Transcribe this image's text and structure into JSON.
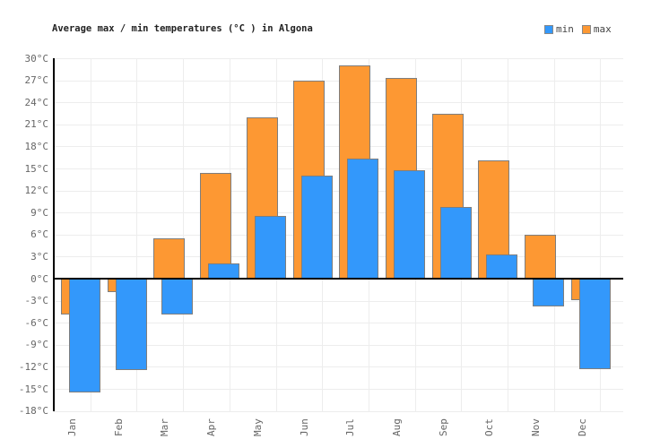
{
  "title": "Average max / min temperatures (°C ) in Algona",
  "legend": {
    "items": [
      {
        "label": "min",
        "color": "#3398fb"
      },
      {
        "label": "max",
        "color": "#fd9833"
      }
    ]
  },
  "colors": {
    "min_bar": "#3398fb",
    "max_bar": "#fd9833",
    "bar_border": "#7e7e7e",
    "gridline": "#ededed",
    "zero_line": "#000000",
    "axis_line": "#000000",
    "title_text": "#222222",
    "tick_text": "#666666",
    "legend_text": "#444444"
  },
  "chart_data": {
    "type": "bar",
    "title": "Average max / min temperatures (°C ) in Algona",
    "categories": [
      "Jan",
      "Feb",
      "Mar",
      "Apr",
      "May",
      "Jun",
      "Jul",
      "Aug",
      "Sep",
      "Oct",
      "Nov",
      "Dec"
    ],
    "series": [
      {
        "name": "min",
        "values": [
          -15.5,
          -12.4,
          -4.9,
          2.1,
          8.5,
          14.0,
          16.4,
          14.7,
          9.8,
          3.3,
          -3.8,
          -12.3
        ]
      },
      {
        "name": "max",
        "values": [
          -4.9,
          -1.8,
          5.5,
          14.4,
          21.9,
          27.0,
          29.0,
          27.3,
          22.4,
          16.1,
          6.0,
          -2.9
        ]
      }
    ],
    "xlabel": "",
    "ylabel": "",
    "unit": "°C",
    "ylim": [
      -18,
      30
    ],
    "ytick_step": 3,
    "yticks": [
      30,
      27,
      24,
      21,
      18,
      15,
      12,
      9,
      6,
      3,
      0,
      -3,
      -6,
      -9,
      -12,
      -15,
      -18
    ],
    "grid": true,
    "legend_position": "top-right",
    "bar_style": "overlapping"
  }
}
